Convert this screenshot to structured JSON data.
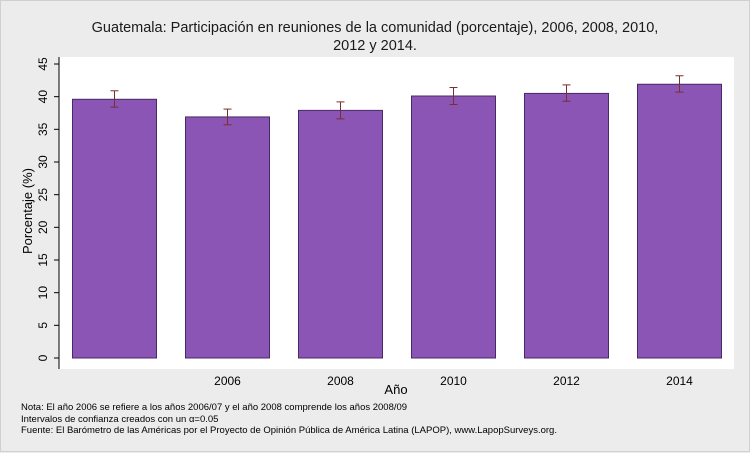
{
  "chart_data": {
    "type": "bar",
    "title_line1": "Guatemala: Participación en reuniones de la comunidad (porcentaje), 2006, 2008, 2010,",
    "title_line2": "2012 y 2014.",
    "xlabel": "Año",
    "ylabel": "Porcentaje (%)",
    "categories": [
      "",
      "2006",
      "2008",
      "2010",
      "2012",
      "2014"
    ],
    "series": [
      {
        "values": [
          39.6,
          36.9,
          37.9,
          40.1,
          40.5,
          41.9
        ],
        "ci_low": [
          38.4,
          35.7,
          36.6,
          38.8,
          39.3,
          40.7
        ],
        "ci_high": [
          40.9,
          38.1,
          39.2,
          41.4,
          41.8,
          43.2
        ]
      }
    ],
    "ylim": [
      0,
      45
    ],
    "yticks": [
      0,
      5,
      10,
      15,
      20,
      25,
      30,
      35,
      40,
      45
    ],
    "grid": false,
    "colors": {
      "bar_fill": "#8b55b5",
      "bar_stroke": "#4a2a66",
      "error_bar": "#7a2e2e",
      "plot_bg": "#ffffff",
      "page_bg": "#ececec"
    }
  },
  "notes": {
    "line1": "Nota: El año 2006 se refiere a los años 2006/07 y el año 2008 comprende los años 2008/09",
    "line2": "Intervalos de confianza creados con un α=0.05",
    "line3": "Fuente: El Barómetro de las Américas por el Proyecto de Opinión Pública de América Latina (LAPOP), www.LapopSurveys.org."
  }
}
